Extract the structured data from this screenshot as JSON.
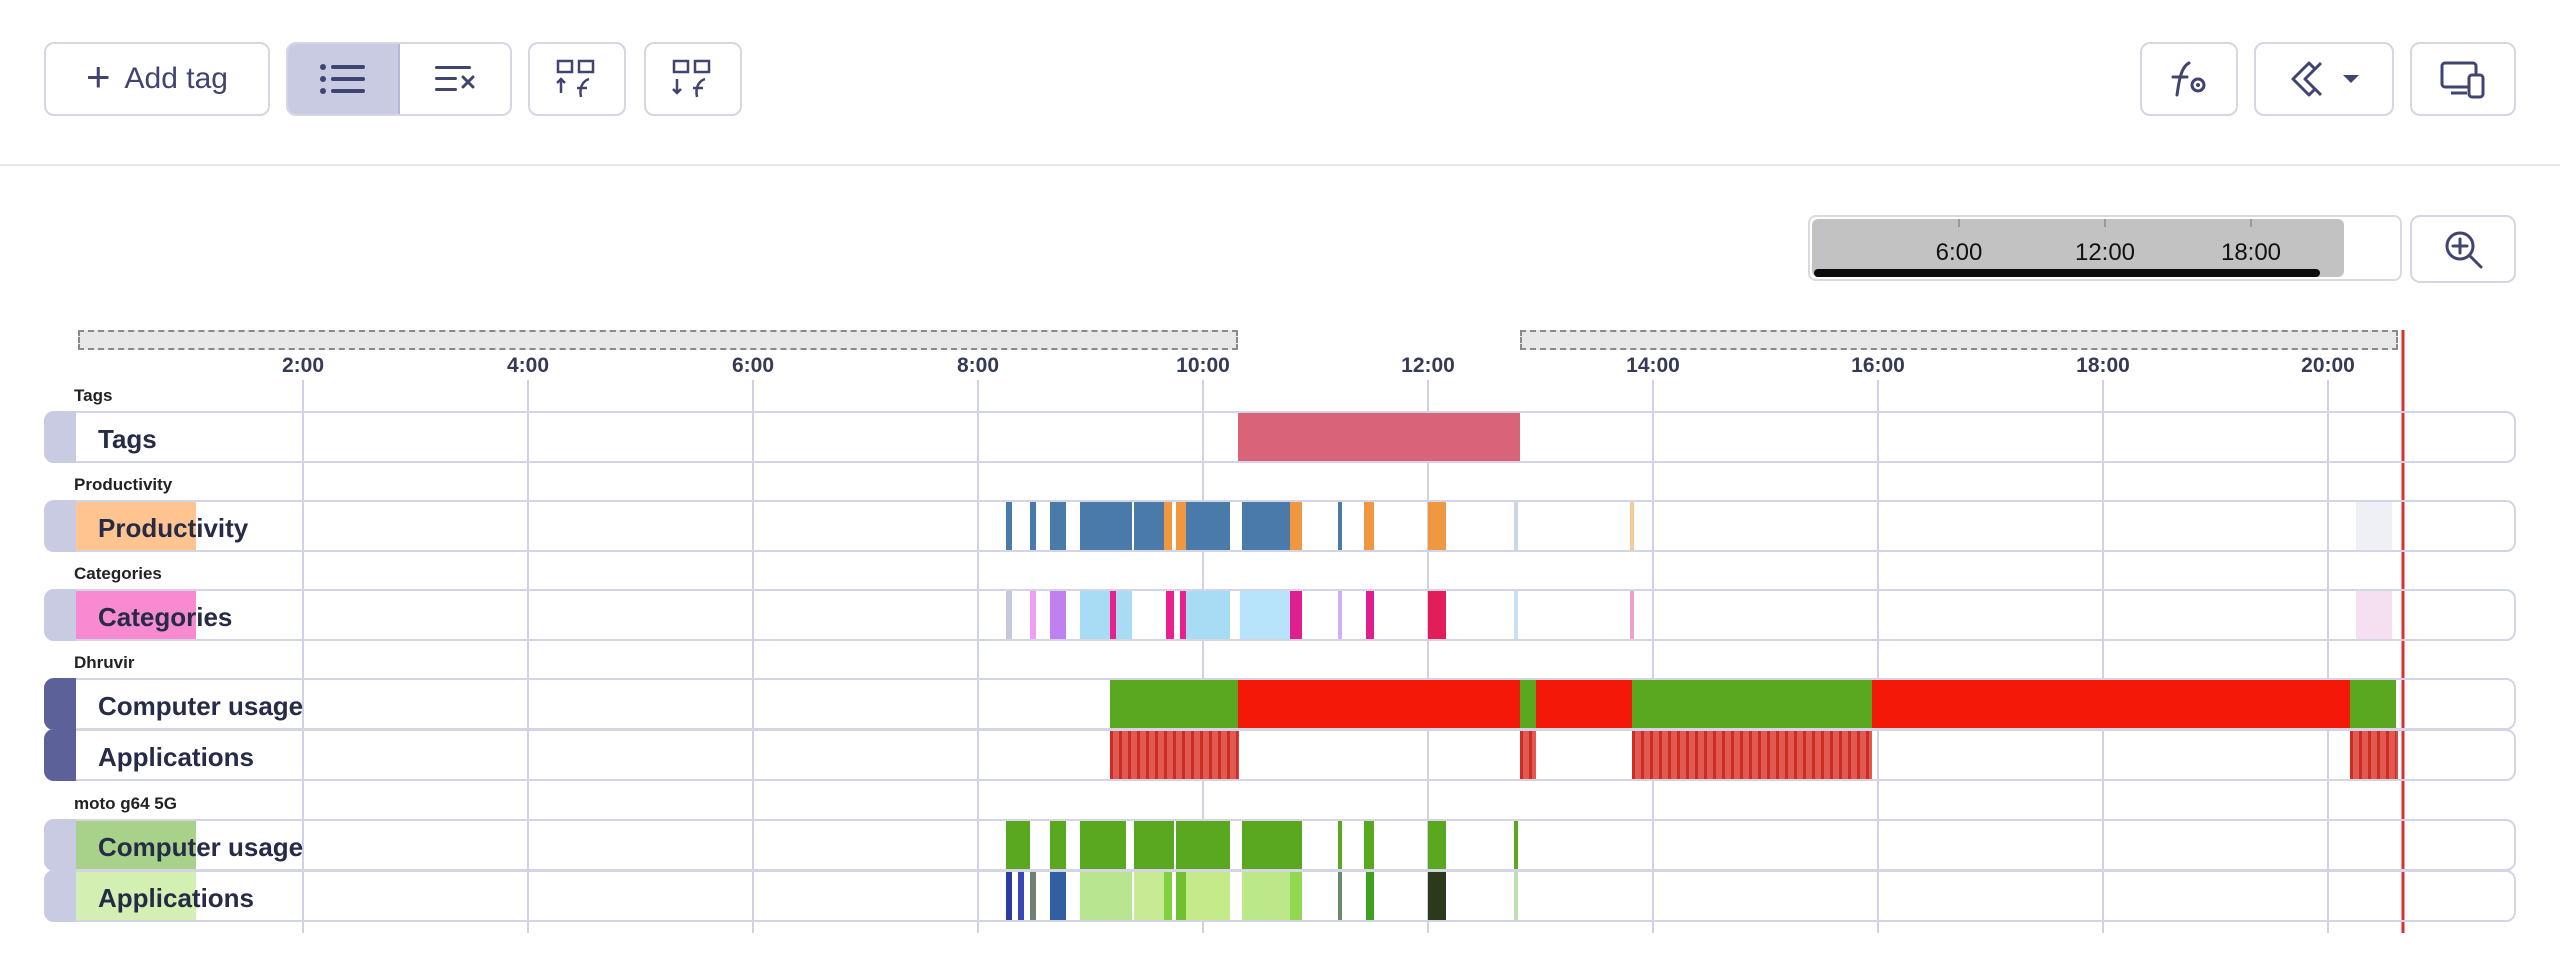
{
  "toolbar": {
    "add_tag_label": "Add tag",
    "icons": {
      "add": "plus-icon",
      "list_view": "list-icon",
      "list_clear": "list-x-icon",
      "fn_grid_1": "grid-function-icon",
      "fn_grid_2": "grid-function-alt-icon",
      "fn_settings": "function-gear-icon",
      "magnet": "magnet-icon",
      "dropdown": "chevron-down-icon",
      "devices": "devices-icon",
      "zoom": "zoom-in-icon"
    }
  },
  "minimap": {
    "ticks": [
      "6:00",
      "12:00",
      "18:00"
    ]
  },
  "timeline": {
    "axis_ticks": [
      "2:00",
      "4:00",
      "6:00",
      "8:00",
      "10:00",
      "12:00",
      "14:00",
      "16:00",
      "18:00",
      "20:00"
    ],
    "groups": [
      {
        "title": "Tags",
        "rows": [
          {
            "label": "Tags"
          }
        ]
      },
      {
        "title": "Productivity",
        "rows": [
          {
            "label": "Productivity"
          }
        ]
      },
      {
        "title": "Categories",
        "rows": [
          {
            "label": "Categories"
          }
        ]
      },
      {
        "title": "Dhruvir",
        "rows": [
          {
            "label": "Computer usage"
          },
          {
            "label": "Applications"
          }
        ]
      },
      {
        "title": "moto g64 5G",
        "rows": [
          {
            "label": "Computer usage"
          },
          {
            "label": "Applications"
          }
        ]
      }
    ]
  },
  "colors": {
    "accent": "#c9cbe3",
    "handle_dark": "#5c6299",
    "tag_block": "#d9647a",
    "now_line": "#d83030",
    "active_green": "#5aa820",
    "inactive_red": "#f41808",
    "productivity_swatch": "#ffc48f",
    "categories_swatch": "#f78ad1",
    "device_usage_swatch": "#a8d18a",
    "device_apps_swatch": "#d3efb1"
  }
}
